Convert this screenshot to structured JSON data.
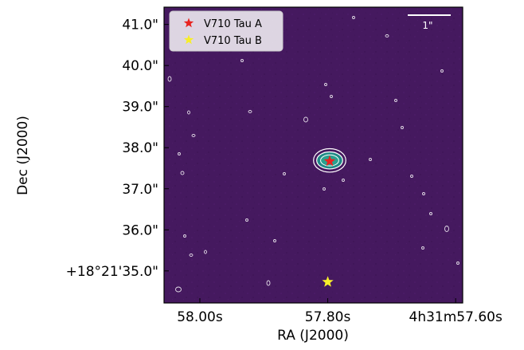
{
  "chart_data": {
    "type": "image",
    "xlabel": "RA (J2000)",
    "ylabel": "Dec (J2000)",
    "x_ticks": [
      {
        "label": "58.00s",
        "value": 58.0
      },
      {
        "label": "57.80s",
        "value": 57.8
      },
      {
        "label": "4h31m57.60s",
        "value": 57.6
      }
    ],
    "y_ticks": [
      {
        "label": "41.0\"",
        "value": 41.0
      },
      {
        "label": "40.0\"",
        "value": 40.0
      },
      {
        "label": "39.0\"",
        "value": 39.0
      },
      {
        "label": "38.0\"",
        "value": 38.0
      },
      {
        "label": "37.0\"",
        "value": 37.0
      },
      {
        "label": "36.0\"",
        "value": 36.0
      },
      {
        "label": "+18°21'35.0\"",
        "value": 35.0
      }
    ],
    "xlim": [
      58.056,
      57.589
    ],
    "ylim": [
      34.22,
      41.42
    ],
    "background_color": "#45195f",
    "contour_color": "#ffffff",
    "emission_color": "#1f8a86",
    "legend": {
      "location": "upper left",
      "entries": [
        {
          "label": "V710 Tau A",
          "color": "#e8231f",
          "marker": "star"
        },
        {
          "label": "V710 Tau B",
          "color": "#f7ee2a",
          "marker": "star"
        }
      ]
    },
    "sources": [
      {
        "name": "V710 Tau A",
        "ra_s": 57.797,
        "dec_arcsec": 37.67,
        "color": "#e8231f"
      },
      {
        "name": "V710 Tau B",
        "ra_s": 57.8,
        "dec_arcsec": 34.73,
        "color": "#f7ee2a"
      }
    ],
    "emission": {
      "ra_s": 57.797,
      "dec_arcsec": 37.69,
      "major_arcsec": 0.55,
      "minor_arcsec": 0.32
    },
    "scale_bar": {
      "label": "1\"",
      "length_arcsec": 1
    }
  }
}
